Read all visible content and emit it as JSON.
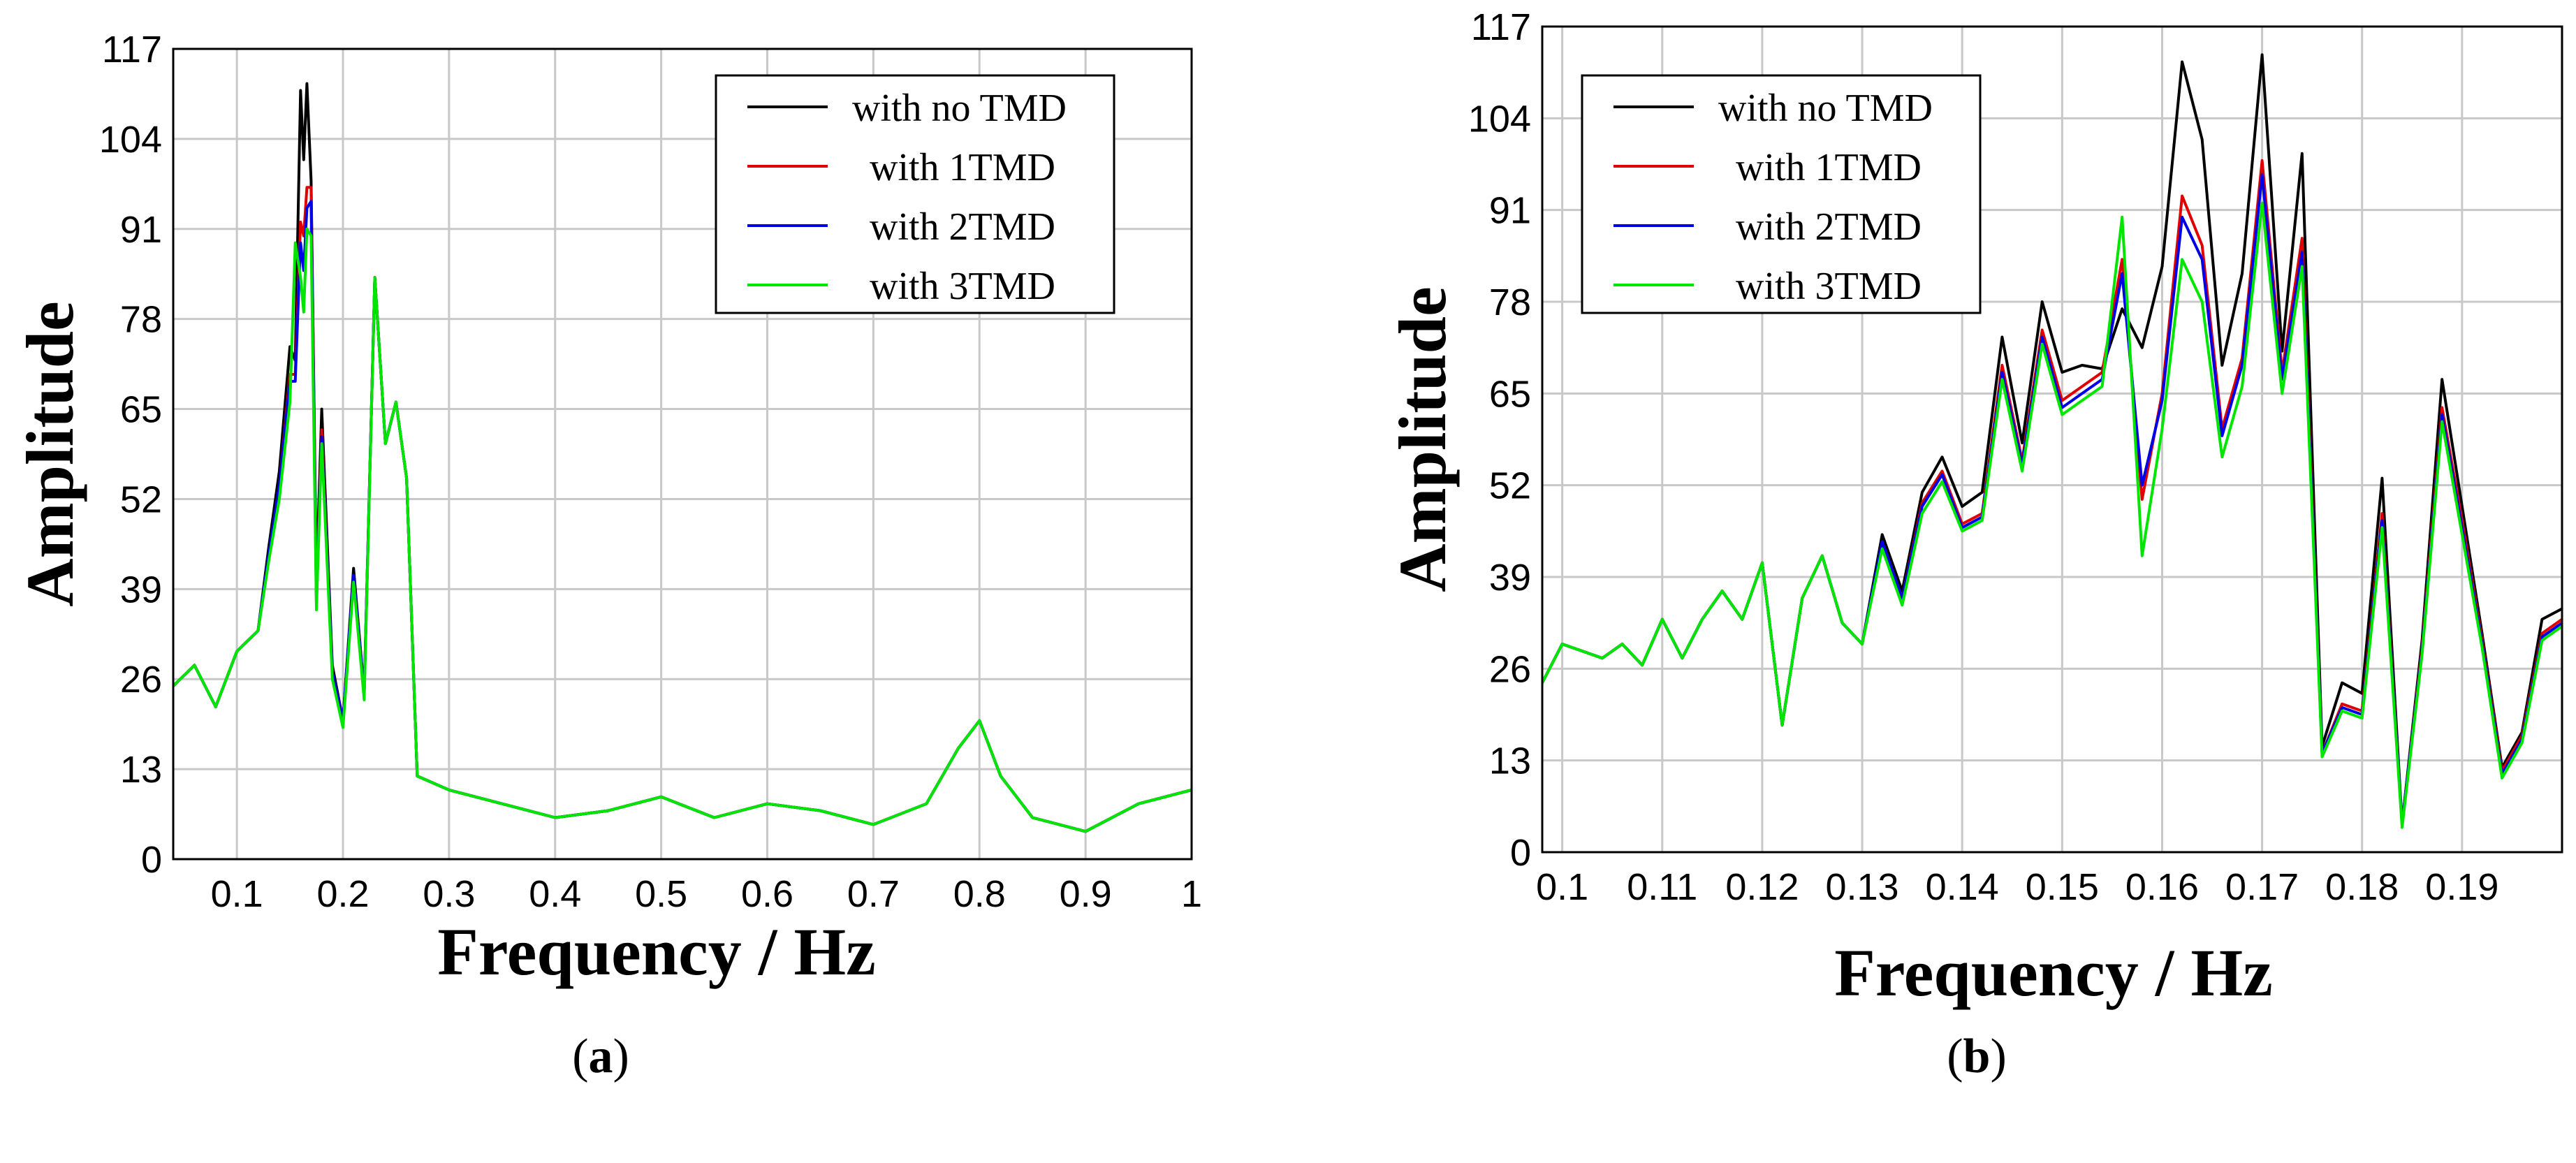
{
  "panels": [
    {
      "caption_letter": "a",
      "xlabel": "Frequency  / Hz",
      "ylabel": "Amplitude",
      "legend": [
        "with no TMD",
        "with 1TMD",
        "with 2TMD",
        "with 3TMD"
      ]
    },
    {
      "caption_letter": "b",
      "xlabel": "Frequency / Hz",
      "ylabel": "Amplitude",
      "legend": [
        "with no TMD",
        "with 1TMD",
        "with 2TMD",
        "with 3TMD"
      ]
    }
  ],
  "chart_data": [
    {
      "type": "line",
      "title": "",
      "xlabel": "Frequency  / Hz",
      "ylabel": "Amplitude",
      "xlim": [
        0.04,
        1.0
      ],
      "ylim": [
        0,
        117
      ],
      "x_ticks": [
        "0.1",
        "0.2",
        "0.3",
        "0.4",
        "0.5",
        "0.6",
        "0.7",
        "0.8",
        "0.9",
        "1"
      ],
      "y_ticks": [
        "0",
        "13",
        "26",
        "39",
        "52",
        "65",
        "78",
        "91",
        "104",
        "117"
      ],
      "grid": true,
      "legend_position": "top-right",
      "colors": [
        "#000000",
        "#e00000",
        "#0000e6",
        "#00e600"
      ],
      "series": [
        {
          "name": "with no TMD",
          "x": [
            0.04,
            0.06,
            0.08,
            0.1,
            0.12,
            0.13,
            0.14,
            0.15,
            0.155,
            0.16,
            0.163,
            0.166,
            0.17,
            0.175,
            0.18,
            0.19,
            0.2,
            0.21,
            0.22,
            0.23,
            0.24,
            0.25,
            0.26,
            0.27,
            0.3,
            0.35,
            0.4,
            0.45,
            0.5,
            0.55,
            0.6,
            0.65,
            0.7,
            0.75,
            0.78,
            0.8,
            0.82,
            0.85,
            0.9,
            0.95,
            1.0
          ],
          "y": [
            25,
            28,
            22,
            30,
            33,
            45,
            56,
            74,
            72,
            111,
            101,
            112,
            98,
            40,
            65,
            28,
            20,
            42,
            24,
            84,
            60,
            66,
            55,
            12,
            10,
            8,
            6,
            7,
            9,
            6,
            8,
            7,
            5,
            8,
            16,
            20,
            12,
            6,
            4,
            8,
            10
          ]
        },
        {
          "name": "with 1TMD",
          "x": [
            0.04,
            0.06,
            0.08,
            0.1,
            0.12,
            0.13,
            0.14,
            0.15,
            0.155,
            0.16,
            0.163,
            0.166,
            0.17,
            0.175,
            0.18,
            0.19,
            0.2,
            0.21,
            0.22,
            0.23,
            0.24,
            0.25,
            0.26,
            0.27,
            0.3,
            0.35,
            0.4,
            0.45,
            0.5,
            0.55,
            0.6,
            0.65,
            0.7,
            0.75,
            0.78,
            0.8,
            0.82,
            0.85,
            0.9,
            0.95,
            1.0
          ],
          "y": [
            25,
            28,
            22,
            30,
            33,
            44,
            54,
            70,
            70,
            92,
            90,
            97,
            97,
            38,
            62,
            27,
            20,
            41,
            24,
            84,
            60,
            66,
            55,
            12,
            10,
            8,
            6,
            7,
            9,
            6,
            8,
            7,
            5,
            8,
            16,
            20,
            12,
            6,
            4,
            8,
            10
          ]
        },
        {
          "name": "with 2TMD",
          "x": [
            0.04,
            0.06,
            0.08,
            0.1,
            0.12,
            0.13,
            0.14,
            0.15,
            0.155,
            0.16,
            0.163,
            0.166,
            0.17,
            0.175,
            0.18,
            0.19,
            0.2,
            0.21,
            0.22,
            0.23,
            0.24,
            0.25,
            0.26,
            0.27,
            0.3,
            0.35,
            0.4,
            0.45,
            0.5,
            0.55,
            0.6,
            0.65,
            0.7,
            0.75,
            0.78,
            0.8,
            0.82,
            0.85,
            0.9,
            0.95,
            1.0
          ],
          "y": [
            25,
            28,
            22,
            30,
            33,
            44,
            54,
            69,
            69,
            89,
            85,
            94,
            95,
            37,
            61,
            27,
            20,
            41,
            24,
            84,
            60,
            66,
            55,
            12,
            10,
            8,
            6,
            7,
            9,
            6,
            8,
            7,
            5,
            8,
            16,
            20,
            12,
            6,
            4,
            8,
            10
          ]
        },
        {
          "name": "with 3TMD",
          "x": [
            0.04,
            0.06,
            0.08,
            0.1,
            0.12,
            0.13,
            0.14,
            0.15,
            0.155,
            0.16,
            0.163,
            0.166,
            0.17,
            0.175,
            0.18,
            0.19,
            0.2,
            0.21,
            0.22,
            0.23,
            0.24,
            0.25,
            0.26,
            0.27,
            0.3,
            0.35,
            0.4,
            0.45,
            0.5,
            0.55,
            0.6,
            0.65,
            0.7,
            0.75,
            0.78,
            0.8,
            0.82,
            0.85,
            0.9,
            0.95,
            1.0
          ],
          "y": [
            25,
            28,
            22,
            30,
            33,
            43,
            52,
            66,
            89,
            84,
            79,
            91,
            90,
            36,
            60,
            26,
            19,
            40,
            23,
            84,
            60,
            66,
            55,
            12,
            10,
            8,
            6,
            7,
            9,
            6,
            8,
            7,
            5,
            8,
            16,
            20,
            12,
            6,
            4,
            8,
            10
          ]
        }
      ]
    },
    {
      "type": "line",
      "title": "",
      "xlabel": "Frequency / Hz",
      "ylabel": "Amplitude",
      "xlim": [
        0.098,
        0.2
      ],
      "ylim": [
        0,
        117
      ],
      "x_ticks": [
        "0.1",
        "0.11",
        "0.12",
        "0.13",
        "0.14",
        "0.15",
        "0.16",
        "0.17",
        "0.18",
        "0.19"
      ],
      "y_ticks": [
        "0",
        "13",
        "26",
        "39",
        "52",
        "65",
        "78",
        "91",
        "104",
        "117"
      ],
      "grid": true,
      "legend_position": "top-left",
      "colors": [
        "#000000",
        "#e00000",
        "#0000e6",
        "#00e600"
      ],
      "series": [
        {
          "name": "with no TMD",
          "x": [
            0.098,
            0.1,
            0.102,
            0.104,
            0.106,
            0.108,
            0.11,
            0.112,
            0.114,
            0.116,
            0.118,
            0.12,
            0.122,
            0.124,
            0.126,
            0.128,
            0.13,
            0.132,
            0.134,
            0.136,
            0.138,
            0.14,
            0.142,
            0.144,
            0.146,
            0.148,
            0.15,
            0.152,
            0.154,
            0.156,
            0.158,
            0.16,
            0.162,
            0.164,
            0.166,
            0.168,
            0.17,
            0.172,
            0.174,
            0.176,
            0.178,
            0.18,
            0.182,
            0.184,
            0.186,
            0.188,
            0.19,
            0.192,
            0.194,
            0.196,
            0.198,
            0.2
          ],
          "y": [
            24,
            29.5,
            28.5,
            27.5,
            29.5,
            26.5,
            33,
            27.5,
            33,
            37,
            33,
            41,
            18,
            36,
            42,
            32.5,
            29.5,
            45,
            37,
            51,
            56,
            49,
            51,
            73,
            58,
            78,
            68,
            69,
            68.5,
            77,
            71.5,
            83,
            112,
            101,
            69,
            82,
            113,
            71,
            99,
            15,
            24,
            22.5,
            53,
            4,
            30,
            67,
            49,
            31,
            12,
            17,
            33,
            34.5
          ]
        },
        {
          "name": "with 1TMD",
          "x": [
            0.098,
            0.1,
            0.102,
            0.104,
            0.106,
            0.108,
            0.11,
            0.112,
            0.114,
            0.116,
            0.118,
            0.12,
            0.122,
            0.124,
            0.126,
            0.128,
            0.13,
            0.132,
            0.134,
            0.136,
            0.138,
            0.14,
            0.142,
            0.144,
            0.146,
            0.148,
            0.15,
            0.152,
            0.154,
            0.156,
            0.158,
            0.16,
            0.162,
            0.164,
            0.166,
            0.168,
            0.17,
            0.172,
            0.174,
            0.176,
            0.178,
            0.18,
            0.182,
            0.184,
            0.186,
            0.188,
            0.19,
            0.192,
            0.194,
            0.196,
            0.198,
            0.2
          ],
          "y": [
            24,
            29.5,
            28.5,
            27.5,
            29.5,
            26.5,
            33,
            27.5,
            33,
            37,
            33,
            41,
            18,
            36,
            42,
            32.5,
            29.5,
            44,
            36,
            49.5,
            54,
            46.5,
            48,
            69,
            55.5,
            74,
            64,
            66,
            68,
            84,
            50,
            65,
            93,
            86,
            60,
            70,
            98,
            68,
            87,
            14,
            21,
            20,
            48,
            4,
            29,
            63,
            47,
            30,
            11.5,
            16.5,
            31,
            33
          ]
        },
        {
          "name": "with 2TMD",
          "x": [
            0.098,
            0.1,
            0.102,
            0.104,
            0.106,
            0.108,
            0.11,
            0.112,
            0.114,
            0.116,
            0.118,
            0.12,
            0.122,
            0.124,
            0.126,
            0.128,
            0.13,
            0.132,
            0.134,
            0.136,
            0.138,
            0.14,
            0.142,
            0.144,
            0.146,
            0.148,
            0.15,
            0.152,
            0.154,
            0.156,
            0.158,
            0.16,
            0.162,
            0.164,
            0.166,
            0.168,
            0.17,
            0.172,
            0.174,
            0.176,
            0.178,
            0.18,
            0.182,
            0.184,
            0.186,
            0.188,
            0.19,
            0.192,
            0.194,
            0.196,
            0.198,
            0.2
          ],
          "y": [
            24,
            29.5,
            28.5,
            27.5,
            29.5,
            26.5,
            33,
            27.5,
            33,
            37,
            33,
            41,
            18,
            36,
            42,
            32.5,
            29.5,
            44,
            36,
            49,
            53.5,
            46,
            47.5,
            68,
            55,
            73,
            63,
            65,
            67,
            82,
            52,
            64,
            90,
            84,
            59,
            69,
            96,
            67,
            85,
            14,
            20.5,
            19.5,
            47,
            4,
            28.5,
            62,
            46,
            29.5,
            11,
            16,
            30.5,
            32.5
          ]
        },
        {
          "name": "with 3TMD",
          "x": [
            0.098,
            0.1,
            0.102,
            0.104,
            0.106,
            0.108,
            0.11,
            0.112,
            0.114,
            0.116,
            0.118,
            0.12,
            0.122,
            0.124,
            0.126,
            0.128,
            0.13,
            0.132,
            0.134,
            0.136,
            0.138,
            0.14,
            0.142,
            0.144,
            0.146,
            0.148,
            0.15,
            0.152,
            0.154,
            0.156,
            0.158,
            0.16,
            0.162,
            0.164,
            0.166,
            0.168,
            0.17,
            0.172,
            0.174,
            0.176,
            0.178,
            0.18,
            0.182,
            0.184,
            0.186,
            0.188,
            0.19,
            0.192,
            0.194,
            0.196,
            0.198,
            0.2
          ],
          "y": [
            24,
            29.5,
            28.5,
            27.5,
            29.5,
            26.5,
            33,
            27.5,
            33,
            37,
            33,
            41,
            18,
            36,
            42,
            32.5,
            29.5,
            43,
            35,
            48,
            52.5,
            45.5,
            47,
            67,
            54,
            72,
            62,
            64,
            66,
            90,
            42,
            60,
            84,
            78,
            56,
            66,
            92,
            65,
            83,
            13.5,
            20,
            19,
            46,
            3.5,
            28,
            61,
            45,
            29,
            10.5,
            15.5,
            30,
            32
          ]
        }
      ]
    }
  ]
}
